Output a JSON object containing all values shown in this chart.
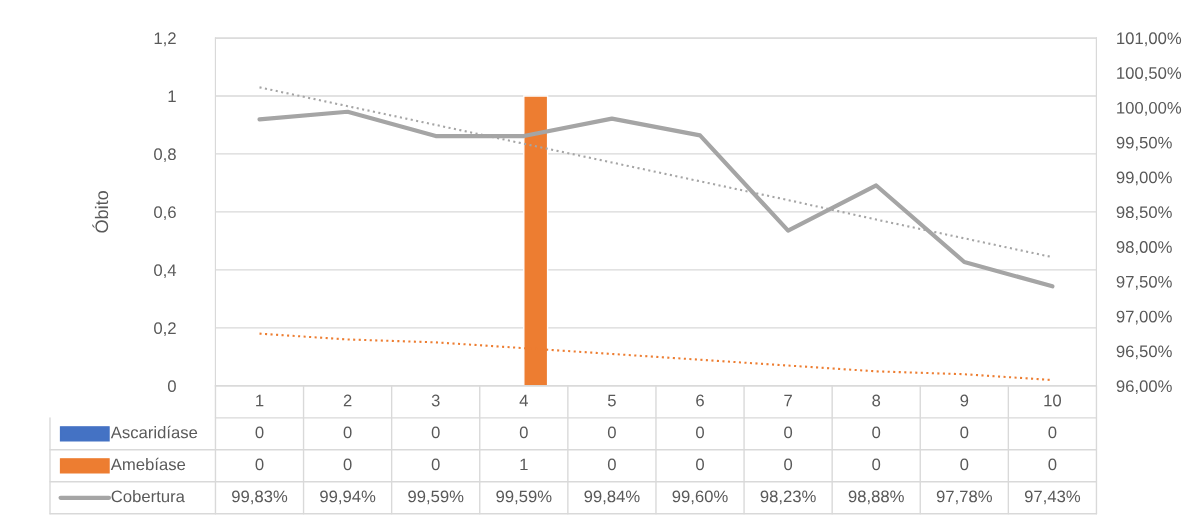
{
  "chart_data": {
    "type": "bar",
    "ylabel": "Óbito",
    "categories": [
      "1",
      "2",
      "3",
      "4",
      "5",
      "6",
      "7",
      "8",
      "9",
      "10"
    ],
    "series": [
      {
        "name": "Ascaridíase",
        "color": "#4472c4",
        "values": [
          0,
          0,
          0,
          0,
          0,
          0,
          0,
          0,
          0,
          0
        ],
        "value_labels": [
          "0",
          "0",
          "0",
          "0",
          "0",
          "0",
          "0",
          "0",
          "0",
          "0"
        ]
      },
      {
        "name": "Amebíase",
        "color": "#ed7d31",
        "values": [
          0,
          0,
          0,
          1,
          0,
          0,
          0,
          0,
          0,
          0
        ],
        "value_labels": [
          "0",
          "0",
          "0",
          "1",
          "0",
          "0",
          "0",
          "0",
          "0",
          "0"
        ]
      },
      {
        "name": "Cobertura",
        "type": "line",
        "axis": "y2",
        "color": "#a5a5a5",
        "line_style": "solid",
        "values": [
          99.83,
          99.94,
          99.59,
          99.59,
          99.84,
          99.6,
          98.23,
          98.88,
          97.78,
          97.43
        ],
        "value_labels": [
          "99,83%",
          "99,94%",
          "99,59%",
          "99,59%",
          "99,84%",
          "99,60%",
          "98,23%",
          "98,88%",
          "97,78%",
          "97,43%"
        ]
      },
      {
        "type": "line",
        "color": "#ed7d31",
        "line_style": "dotted",
        "values": [
          0.18,
          0.16,
          0.15,
          0.13,
          0.11,
          0.09,
          0.07,
          0.05,
          0.04,
          0.02
        ]
      },
      {
        "type": "line",
        "axis": "y2",
        "color": "#a5a5a5",
        "line_style": "dotted",
        "values": [
          100.29,
          100.02,
          99.75,
          99.48,
          99.21,
          98.94,
          98.67,
          98.39,
          98.12,
          97.85
        ]
      }
    ],
    "ylim": [
      0,
      1.2
    ],
    "yticks": [
      {
        "value": 0,
        "label": "0"
      },
      {
        "value": 0.2,
        "label": "0,2"
      },
      {
        "value": 0.4,
        "label": "0,4"
      },
      {
        "value": 0.6,
        "label": "0,6"
      },
      {
        "value": 0.8,
        "label": "0,8"
      },
      {
        "value": 1,
        "label": "1"
      },
      {
        "value": 1.2,
        "label": "1,2"
      }
    ],
    "y2lim": [
      96,
      101
    ],
    "y2ticks": [
      {
        "value": 96,
        "label": "96,00%"
      },
      {
        "value": 96.5,
        "label": "96,50%"
      },
      {
        "value": 97,
        "label": "97,00%"
      },
      {
        "value": 97.5,
        "label": "97,50%"
      },
      {
        "value": 98,
        "label": "98,00%"
      },
      {
        "value": 98.5,
        "label": "98,50%"
      },
      {
        "value": 99,
        "label": "99,00%"
      },
      {
        "value": 99.5,
        "label": "99,50%"
      },
      {
        "value": 100,
        "label": "100,00%"
      },
      {
        "value": 100.5,
        "label": "100,50%"
      },
      {
        "value": 101,
        "label": "101,00%"
      }
    ],
    "grid": "y",
    "legend": "bottom"
  }
}
